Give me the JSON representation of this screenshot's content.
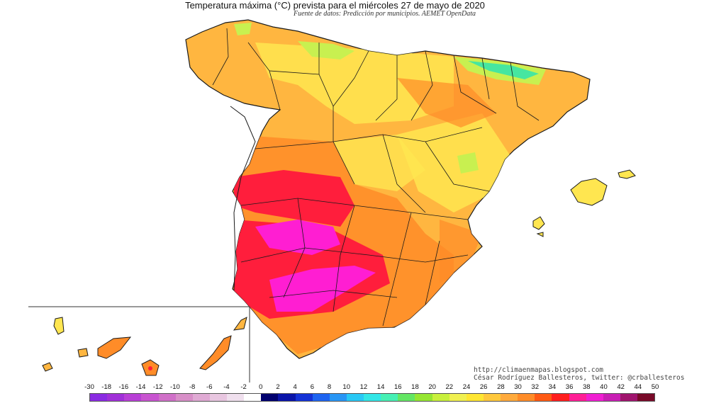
{
  "title": "Temperatura máxima (°C) prevista para el miércoles 27 de mayo de 2020",
  "subtitle": "Fuente de datos: Predicción por municipios. AEMET OpenData",
  "credits": {
    "url": "http://climaenmapas.blogspot.com",
    "author": "César Rodríguez Ballesteros, twitter: @crballesteros"
  },
  "legend": {
    "labels": [
      "-30",
      "-18",
      "-16",
      "-14",
      "-12",
      "-10",
      "-8",
      "-6",
      "-4",
      "-2",
      "0",
      "2",
      "4",
      "6",
      "8",
      "10",
      "12",
      "14",
      "16",
      "18",
      "20",
      "22",
      "24",
      "26",
      "28",
      "30",
      "32",
      "34",
      "36",
      "38",
      "40",
      "42",
      "44",
      "50"
    ],
    "colors": [
      "#8a2be2",
      "#a030d8",
      "#b83fd6",
      "#c854d0",
      "#d070c8",
      "#d88fc8",
      "#e0aad4",
      "#e8c6e0",
      "#f0e0ee",
      "#ffffff",
      "#00006e",
      "#0a14a8",
      "#1432d6",
      "#1e64f0",
      "#2896f5",
      "#28c8f5",
      "#32e6e6",
      "#46f0b4",
      "#64e664",
      "#96e632",
      "#c8f03c",
      "#f0f050",
      "#ffe632",
      "#ffc83c",
      "#ffaa3c",
      "#ff8c28",
      "#ff5a14",
      "#ff1e1e",
      "#ff1e96",
      "#f01ed2",
      "#c81eb4",
      "#a0146e",
      "#780a28"
    ]
  },
  "map_colors": {
    "sea": "#ffffff",
    "base": "#ffb640",
    "warm": "#ff8c28",
    "hot": "#ff1e3c",
    "very_hot": "#ff1ed2",
    "mild": "#ffe650",
    "cool": "#c8f050",
    "cold": "#46e6a0",
    "borders": "#1a1a1a"
  }
}
